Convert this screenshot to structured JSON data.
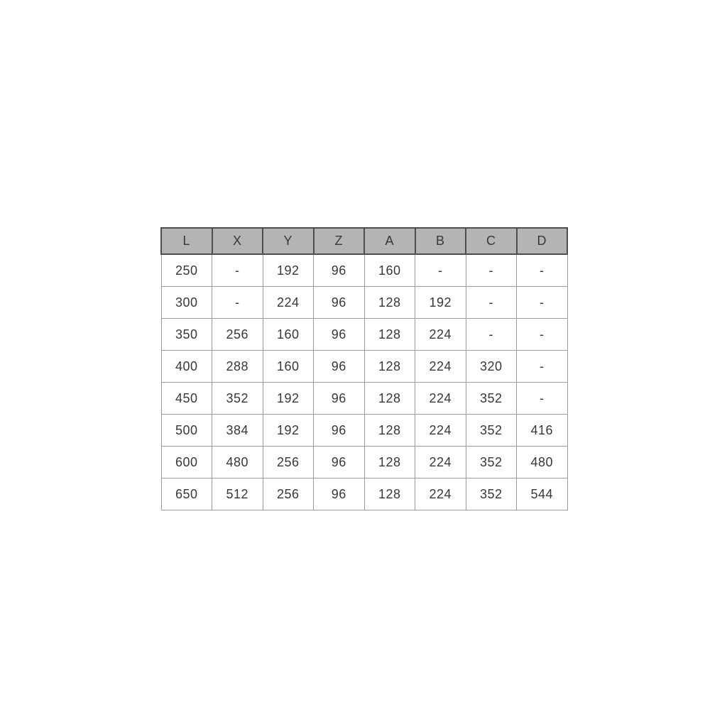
{
  "page": {
    "background_color": "#ffffff"
  },
  "chart_data": {
    "type": "table",
    "title": "",
    "columns": [
      "L",
      "X",
      "Y",
      "Z",
      "A",
      "B",
      "C",
      "D"
    ],
    "rows": [
      [
        "250",
        "-",
        "192",
        "96",
        "160",
        "-",
        "-",
        "-"
      ],
      [
        "300",
        "-",
        "224",
        "96",
        "128",
        "192",
        "-",
        "-"
      ],
      [
        "350",
        "256",
        "160",
        "96",
        "128",
        "224",
        "-",
        "-"
      ],
      [
        "400",
        "288",
        "160",
        "96",
        "128",
        "224",
        "320",
        "-"
      ],
      [
        "450",
        "352",
        "192",
        "96",
        "128",
        "224",
        "352",
        "-"
      ],
      [
        "500",
        "384",
        "192",
        "96",
        "128",
        "224",
        "352",
        "416"
      ],
      [
        "600",
        "480",
        "256",
        "96",
        "128",
        "224",
        "352",
        "480"
      ],
      [
        "650",
        "512",
        "256",
        "96",
        "128",
        "224",
        "352",
        "544"
      ]
    ],
    "layout": {
      "header_background": "#b4b4b4",
      "header_border_color": "#4d4d4d",
      "body_border_color": "#9b9b9b",
      "text_color": "#383838",
      "grid": "on",
      "position": "centered"
    }
  }
}
